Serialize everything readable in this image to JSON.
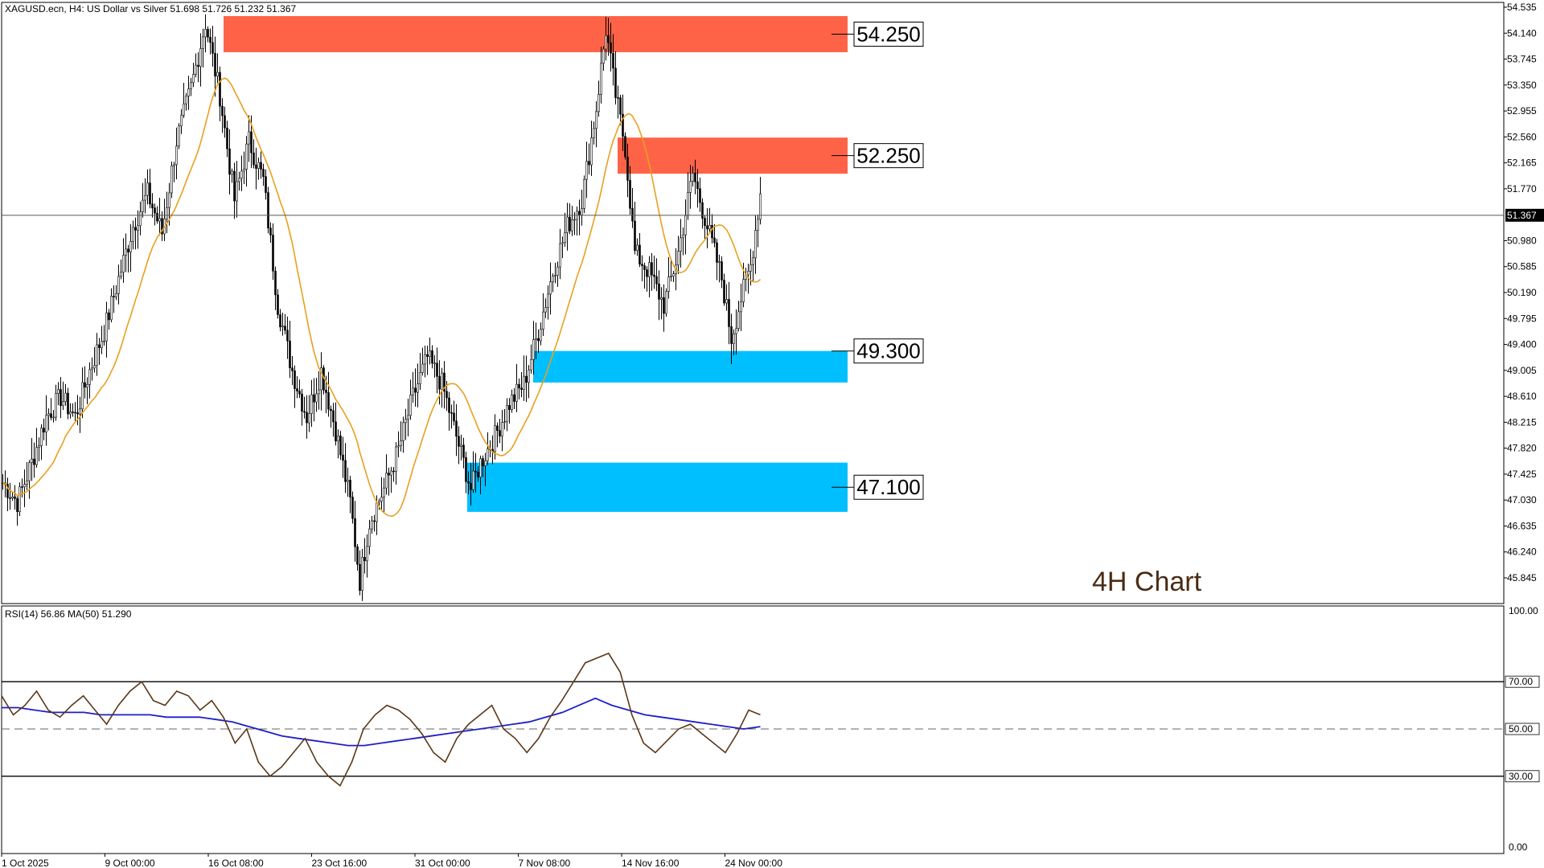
{
  "header": {
    "symbol_line": "XAGUSD.ecn, H4:  US Dollar vs Silver  51.698 51.726 51.232 51.367"
  },
  "chart_label": "4H Chart",
  "price_axis": {
    "ticks": [
      "54.535",
      "54.140",
      "53.745",
      "53.350",
      "52.955",
      "52.560",
      "52.165",
      "51.770",
      "51.367",
      "50.980",
      "50.585",
      "50.190",
      "49.795",
      "49.400",
      "49.005",
      "48.610",
      "48.215",
      "47.820",
      "47.425",
      "47.030",
      "46.635",
      "46.240",
      "45.845"
    ],
    "current_price": "51.367"
  },
  "rsi_panel": {
    "header": "RSI(14) 56.86 MA(50) 51.290",
    "ticks": [
      "100.00",
      "70.00",
      "50.00",
      "30.00",
      "0.00"
    ]
  },
  "time_axis": {
    "labels": [
      "1 Oct 2025",
      "9 Oct 00:00",
      "16 Oct 08:00",
      "23 Oct 16:00",
      "31 Oct 00:00",
      "7 Nov 08:00",
      "14 Nov 16:00",
      "24 Nov 00:00"
    ]
  },
  "colors": {
    "resistance": "#ff6347",
    "support": "#00bfff",
    "ma": "#e8a020",
    "rsi": "#5a3818",
    "rsi_ma": "#1e1ec8",
    "candle": "#000000"
  },
  "chart_data": [
    {
      "type": "candlestick",
      "title": "XAGUSD.ecn, H4:  US Dollar vs Silver  51.698 51.726 51.232 51.367",
      "ylim": [
        45.6,
        54.6
      ],
      "current_price": 51.367,
      "moving_average": true,
      "zones": [
        {
          "label": "54.250",
          "kind": "resistance",
          "low": 53.85,
          "high": 54.4
        },
        {
          "label": "52.250",
          "kind": "resistance",
          "low": 52.0,
          "high": 52.55
        },
        {
          "label": "49.300",
          "kind": "support",
          "low": 48.82,
          "high": 49.3
        },
        {
          "label": "47.100",
          "kind": "support",
          "low": 46.85,
          "high": 47.6
        }
      ],
      "path": [
        [
          0,
          47.3
        ],
        [
          6,
          47.0
        ],
        [
          12,
          47.6
        ],
        [
          18,
          48.3
        ],
        [
          24,
          48.6
        ],
        [
          30,
          48.3
        ],
        [
          36,
          49.0
        ],
        [
          42,
          49.6
        ],
        [
          48,
          50.4
        ],
        [
          54,
          51.2
        ],
        [
          60,
          51.7
        ],
        [
          66,
          51.1
        ],
        [
          72,
          52.5
        ],
        [
          78,
          53.3
        ],
        [
          84,
          54.3
        ],
        [
          90,
          53.2
        ],
        [
          96,
          51.6
        ],
        [
          102,
          52.5
        ],
        [
          108,
          51.9
        ],
        [
          114,
          50.0
        ],
        [
          120,
          49.0
        ],
        [
          126,
          48.3
        ],
        [
          132,
          49.0
        ],
        [
          138,
          48.1
        ],
        [
          144,
          47.0
        ],
        [
          148,
          45.8
        ],
        [
          152,
          46.7
        ],
        [
          158,
          47.2
        ],
        [
          164,
          47.8
        ],
        [
          170,
          48.6
        ],
        [
          176,
          49.2
        ],
        [
          182,
          48.8
        ],
        [
          188,
          48.0
        ],
        [
          194,
          47.2
        ],
        [
          198,
          47.6
        ],
        [
          204,
          48.0
        ],
        [
          210,
          48.5
        ],
        [
          216,
          48.8
        ],
        [
          222,
          49.6
        ],
        [
          228,
          50.5
        ],
        [
          234,
          51.2
        ],
        [
          240,
          51.6
        ],
        [
          246,
          53.0
        ],
        [
          250,
          54.2
        ],
        [
          254,
          53.2
        ],
        [
          258,
          52.4
        ],
        [
          262,
          50.8
        ],
        [
          268,
          50.5
        ],
        [
          274,
          50.0
        ],
        [
          280,
          50.8
        ],
        [
          286,
          52.0
        ],
        [
          292,
          51.2
        ],
        [
          298,
          50.4
        ],
        [
          302,
          49.5
        ],
        [
          306,
          50.1
        ],
        [
          310,
          50.6
        ],
        [
          314,
          51.7
        ]
      ]
    },
    {
      "type": "line",
      "title": "RSI(14) 56.86 MA(50) 51.290",
      "ylim": [
        0,
        100
      ],
      "levels": [
        70,
        50,
        30
      ],
      "series": [
        {
          "name": "RSI(14)",
          "values": [
            64,
            56,
            60,
            66,
            58,
            55,
            60,
            64,
            58,
            52,
            60,
            66,
            70,
            62,
            60,
            66,
            64,
            58,
            62,
            55,
            44,
            50,
            36,
            30,
            34,
            40,
            46,
            36,
            30,
            26,
            36,
            50,
            56,
            60,
            58,
            54,
            48,
            40,
            36,
            46,
            52,
            56,
            60,
            50,
            46,
            40,
            46,
            55,
            62,
            70,
            78,
            80,
            82,
            74,
            56,
            44,
            40,
            45,
            50,
            52,
            48,
            44,
            40,
            48,
            58,
            56
          ]
        },
        {
          "name": "MA(50)",
          "values": [
            59,
            59,
            58,
            57,
            57,
            57,
            56,
            56,
            56,
            56,
            55,
            55,
            55,
            54,
            53,
            51,
            49,
            47,
            46,
            45,
            44,
            43,
            43,
            44,
            45,
            46,
            47,
            48,
            49,
            50,
            51,
            52,
            53,
            55,
            57,
            60,
            63,
            60,
            58,
            56,
            55,
            54,
            53,
            52,
            51,
            50,
            51
          ]
        }
      ]
    }
  ]
}
